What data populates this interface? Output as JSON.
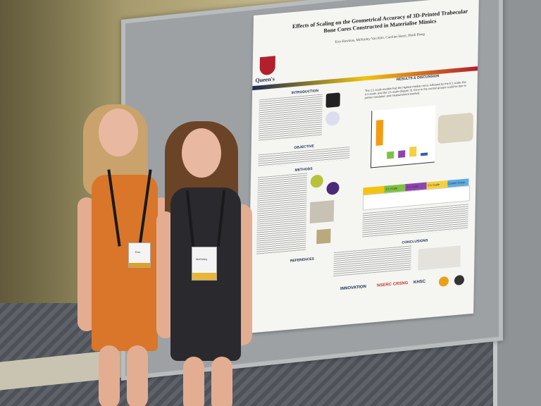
{
  "poster": {
    "title": "Effects of Scaling on the Geometrical Accuracy of 3D-Printed Trabecular Bone Cores Constructed in Materialise Mimics",
    "authors": "Erin Hawkins, McKinley Van Kilo, Caroline Barei, Heidi Ploeg",
    "institution": "Queen's",
    "sections": {
      "introduction": "INTRODUCTION",
      "objective": "OBJECTIVE",
      "methods": "METHODS",
      "results": "RESULTS & DISCUSSION",
      "conclusions": "CONCLUSIONS",
      "references": "REFERENCES"
    },
    "results_text": "The 1:1 scale models had the highest median error, followed by the 6:1 scale, the 4:1 scale, and the 2:1 scale (Figure 3). Error in the control groups could be due to printer resolution and measurement method.",
    "table_headers": [
      "2:1 Scale",
      "4:1 Scale",
      "6:1 Scale",
      "Control Group"
    ],
    "logos": [
      "INNOVATION",
      "NSERC CRSNG",
      "KHSC"
    ]
  },
  "badges": {
    "left_name": "Erin",
    "right_name": "McKinley"
  },
  "colors": {
    "wall": "#cfc59a",
    "board": "#9da1a4",
    "orange_dress": "#d9762a",
    "black_dress": "#2a2a2e",
    "queens_red": "#b21f2d",
    "queens_navy": "#1b2a52",
    "queens_gold": "#f1c40f"
  }
}
